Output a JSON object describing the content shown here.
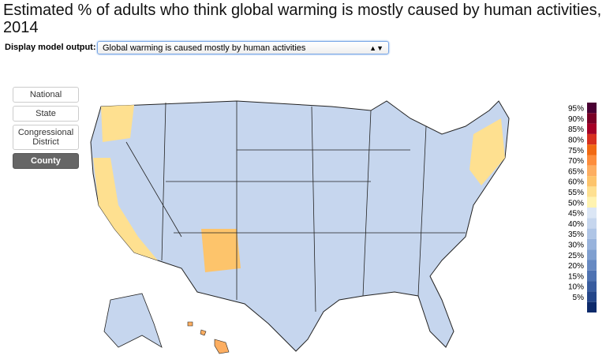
{
  "header": {
    "title": "Estimated % of adults who think global warming is mostly caused by human activities, 2014"
  },
  "controls": {
    "label": "Display model output:",
    "selected": "Global warming is caused mostly by human activities"
  },
  "levels": [
    "National",
    "State",
    "Congressional District",
    "County"
  ],
  "legend": {
    "labels": [
      "95%",
      "90%",
      "85%",
      "80%",
      "75%",
      "70%",
      "65%",
      "60%",
      "55%",
      "50%",
      "45%",
      "40%",
      "35%",
      "30%",
      "25%",
      "20%",
      "15%",
      "10%",
      "5%"
    ],
    "colors": [
      "#4a0033",
      "#7a0026",
      "#a50026",
      "#d7301f",
      "#f16913",
      "#fd8d3c",
      "#fdae61",
      "#fdc46b",
      "#fee090",
      "#fff3b0",
      "#dbe6f5",
      "#c6d6ee",
      "#afc5e6",
      "#98b3dc",
      "#7f9fd0",
      "#6689c2",
      "#4e72b2",
      "#385c9f",
      "#24468a",
      "#0d2a6b"
    ]
  }
}
